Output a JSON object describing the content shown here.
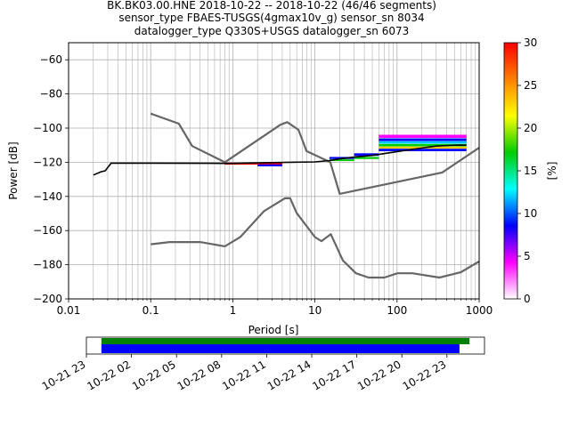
{
  "chart_data": {
    "type": "line",
    "title_lines": [
      "BK.BK03.00.HNE   2018-10-22 -- 2018-10-22  (46/46 segments)",
      "sensor_type FBAES-TUSGS(4gmax10v_g) sensor_sn 8034",
      "datalogger_type Q330S+USGS datalogger_sn 6073"
    ],
    "xlabel": "Period [s]",
    "ylabel": "Power [dB]",
    "x_scale": "log",
    "xlim": [
      0.01,
      1000
    ],
    "ylim": [
      -200,
      -50
    ],
    "x_ticks": [
      {
        "value": 0.01,
        "label": "0.01"
      },
      {
        "value": 0.1,
        "label": "0.1"
      },
      {
        "value": 1,
        "label": "1"
      },
      {
        "value": 10,
        "label": "10"
      },
      {
        "value": 100,
        "label": "100"
      },
      {
        "value": 1000,
        "label": "1000"
      }
    ],
    "y_ticks": [
      {
        "value": -60,
        "label": "−60"
      },
      {
        "value": -80,
        "label": "−80"
      },
      {
        "value": -100,
        "label": "−100"
      },
      {
        "value": -120,
        "label": "−120"
      },
      {
        "value": -140,
        "label": "−140"
      },
      {
        "value": -160,
        "label": "−160"
      },
      {
        "value": -180,
        "label": "−180"
      },
      {
        "value": -200,
        "label": "−200"
      }
    ],
    "grid": true,
    "series": [
      {
        "role": "noise-model-high",
        "color": "#666666",
        "x": [
          0.1,
          0.22,
          0.32,
          0.8,
          3.8,
          4.6,
          6.3,
          7.9,
          15.4,
          20,
          354.8,
          1000
        ],
        "y": [
          -91.5,
          -97.4,
          -110.5,
          -120,
          -98,
          -96.5,
          -101,
          -113.5,
          -120,
          -138.5,
          -126,
          -111.5
        ]
      },
      {
        "role": "noise-model-low",
        "color": "#666666",
        "x": [
          0.1,
          0.17,
          0.4,
          0.8,
          1.24,
          2.4,
          4.3,
          5,
          6,
          10,
          12,
          15.6,
          21.9,
          31.6,
          45,
          70,
          101,
          154,
          328,
          600,
          1000
        ],
        "y": [
          -168,
          -166.7,
          -166.7,
          -169.2,
          -163.7,
          -148.6,
          -141.1,
          -141.1,
          -149.7,
          -163.8,
          -166.2,
          -162.1,
          -177.5,
          -185,
          -187.5,
          -187.5,
          -185,
          -185,
          -187.5,
          -184.4,
          -178
        ]
      },
      {
        "role": "mode",
        "color": "#000000",
        "x": [
          0.02,
          0.025,
          0.028,
          0.03,
          0.033,
          0.05,
          0.1,
          0.5,
          1,
          2,
          5,
          10,
          15,
          20,
          30,
          50,
          80,
          150,
          300,
          500,
          700
        ],
        "y": [
          -127.5,
          -125.5,
          -125,
          -123,
          -120.5,
          -120.5,
          -120.5,
          -120.6,
          -120.7,
          -120.3,
          -120,
          -119.8,
          -119,
          -118,
          -117,
          -116,
          -114.5,
          -112.5,
          -110.5,
          -110,
          -110
        ]
      }
    ],
    "density": {
      "colormap": "pqlx",
      "bands": [
        {
          "x": [
            0.8,
            4
          ],
          "color": "#ff0000",
          "y": -120.8,
          "h": 1.2
        },
        {
          "x": [
            2,
            4
          ],
          "color": "#0000ff",
          "y": -121.8,
          "h": 1.2
        },
        {
          "x": [
            15,
            30
          ],
          "color": "#0000ff",
          "y": -117.5,
          "h": 1.2
        },
        {
          "x": [
            15,
            30
          ],
          "color": "#00cc00",
          "y": -118.8,
          "h": 1.0
        },
        {
          "x": [
            30,
            60
          ],
          "color": "#0000ff",
          "y": -115.5,
          "h": 1.5
        },
        {
          "x": [
            30,
            60
          ],
          "color": "#00cc00",
          "y": -117.5,
          "h": 1.2
        },
        {
          "x": [
            60,
            700
          ],
          "color": "#ff00ff",
          "y": -104.8,
          "h": 1.8
        },
        {
          "x": [
            60,
            700
          ],
          "color": "#0000ff",
          "y": -106.8,
          "h": 1.6
        },
        {
          "x": [
            60,
            700
          ],
          "color": "#00ccff",
          "y": -108.4,
          "h": 1.4
        },
        {
          "x": [
            60,
            700
          ],
          "color": "#00cc00",
          "y": -110.0,
          "h": 1.4
        },
        {
          "x": [
            60,
            700
          ],
          "color": "#ffcc00",
          "y": -111.4,
          "h": 1.2
        },
        {
          "x": [
            60,
            700
          ],
          "color": "#0000ff",
          "y": -112.8,
          "h": 1.4
        }
      ]
    },
    "colorbar": {
      "label": "[%]",
      "range": [
        0,
        30
      ],
      "ticks": [
        {
          "value": 0,
          "label": "0"
        },
        {
          "value": 5,
          "label": "5"
        },
        {
          "value": 10,
          "label": "10"
        },
        {
          "value": 15,
          "label": "15"
        },
        {
          "value": 20,
          "label": "20"
        },
        {
          "value": 25,
          "label": "25"
        },
        {
          "value": 30,
          "label": "30"
        }
      ],
      "stops": [
        "#ffffff",
        "#ff00ff",
        "#0000ff",
        "#00ffff",
        "#00cc00",
        "#ffff00",
        "#ff7f00",
        "#ff0000"
      ]
    },
    "timeline": {
      "start": "2018-10-21 23:00",
      "end": "2018-10-23 01:30",
      "bars": [
        {
          "role": "data",
          "color": "#008000",
          "from": "2018-10-22 00:00",
          "to": "2018-10-23 00:30"
        },
        {
          "role": "used",
          "color": "#0000ff",
          "from": "2018-10-22 00:00",
          "to": "2018-10-22 23:50"
        }
      ],
      "ticks": [
        {
          "value": "2018-10-21 23:00",
          "label": "10-21 23"
        },
        {
          "value": "2018-10-22 02:00",
          "label": "10-22 02"
        },
        {
          "value": "2018-10-22 05:00",
          "label": "10-22 05"
        },
        {
          "value": "2018-10-22 08:00",
          "label": "10-22 08"
        },
        {
          "value": "2018-10-22 11:00",
          "label": "10-22 11"
        },
        {
          "value": "2018-10-22 14:00",
          "label": "10-22 14"
        },
        {
          "value": "2018-10-22 17:00",
          "label": "10-22 17"
        },
        {
          "value": "2018-10-22 20:00",
          "label": "10-22 20"
        },
        {
          "value": "2018-10-22 23:00",
          "label": "10-22 23"
        }
      ]
    }
  }
}
